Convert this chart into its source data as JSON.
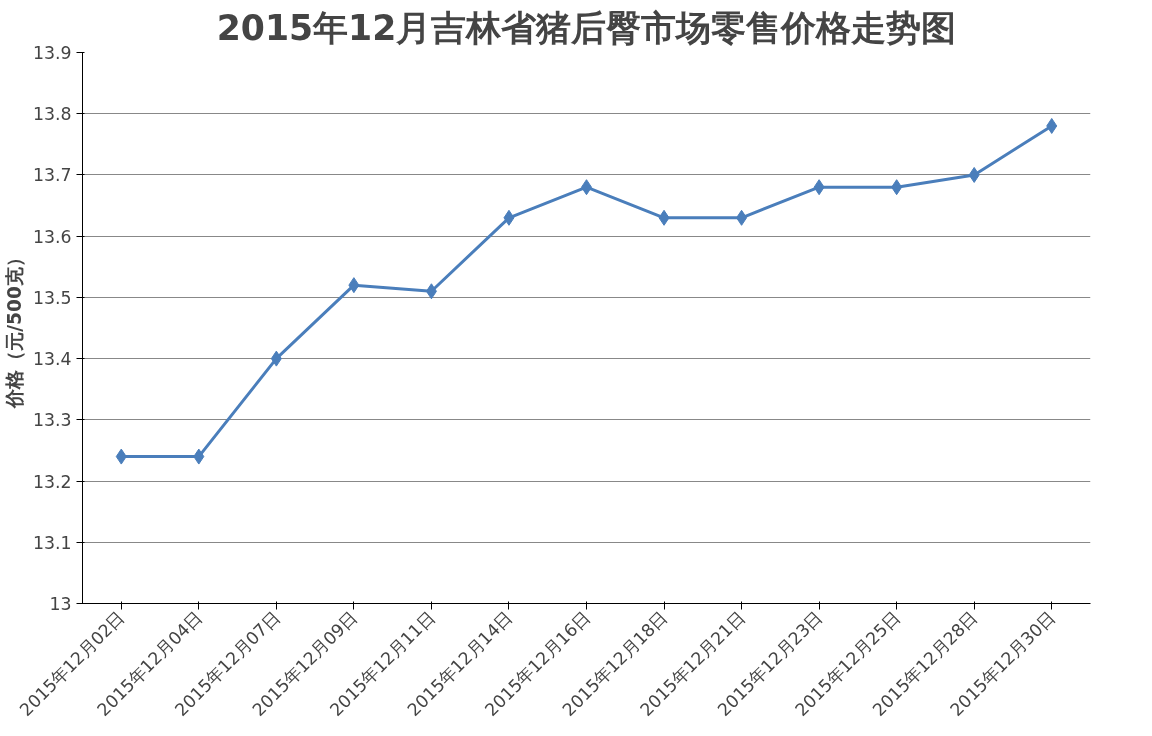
{
  "chart_data": {
    "type": "line",
    "title": "2015年12月吉林省猪后臀市场零售价格走势图",
    "ylabel": "价格（元/500克）",
    "categories": [
      "2015年12月02日",
      "2015年12月04日",
      "2015年12月07日",
      "2015年12月09日",
      "2015年12月11日",
      "2015年12月14日",
      "2015年12月16日",
      "2015年12月18日",
      "2015年12月21日",
      "2015年12月23日",
      "2015年12月25日",
      "2015年12月28日",
      "2015年12月30日"
    ],
    "series": [
      {
        "color": "#4a7ebb",
        "values": [
          13.24,
          13.24,
          13.4,
          13.52,
          13.51,
          13.63,
          13.68,
          13.63,
          13.63,
          13.68,
          13.68,
          13.7,
          13.78
        ]
      }
    ],
    "ylim": [
      13,
      13.9
    ],
    "yticks": [
      13,
      13.1,
      13.2,
      13.3,
      13.4,
      13.5,
      13.6,
      13.7,
      13.8,
      13.9
    ],
    "grid": "y",
    "marker": "diamond",
    "line_style": "solid"
  }
}
